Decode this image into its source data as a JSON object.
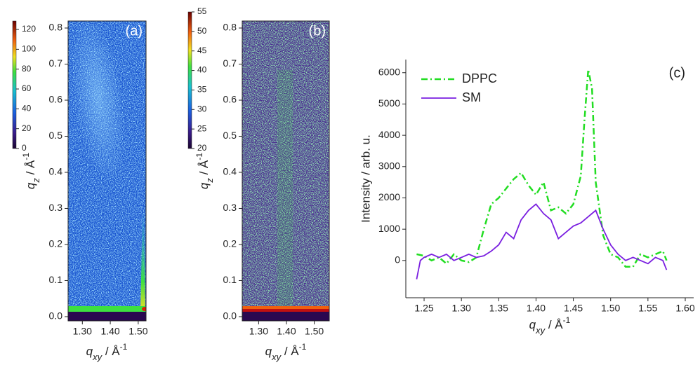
{
  "chart_data": [
    {
      "type": "heatmap",
      "panel_label": "(a)",
      "x_label": [
        "q",
        "xy",
        " / Å",
        "-1"
      ],
      "y_label": [
        "q",
        "z",
        " / Å",
        "-1"
      ],
      "xlim": [
        1.249,
        1.528
      ],
      "xticks": [
        {
          "value": 1.3,
          "label": "1.30"
        },
        {
          "value": 1.4,
          "label": "1.40"
        },
        {
          "value": 1.5,
          "label": "1.50"
        }
      ],
      "ylim": [
        -0.0117,
        0.8194
      ],
      "yticks": [
        {
          "value": 0,
          "label": "0.0"
        },
        {
          "value": 0.1,
          "label": "0.1"
        },
        {
          "value": 0.2,
          "label": "0.2"
        },
        {
          "value": 0.3,
          "label": "0.3"
        },
        {
          "value": 0.4,
          "label": "0.4"
        },
        {
          "value": 0.5,
          "label": "0.5"
        },
        {
          "value": 0.6,
          "label": "0.6"
        },
        {
          "value": 0.7,
          "label": "0.7"
        },
        {
          "value": 0.8,
          "label": "0.8"
        }
      ],
      "colorbar": {
        "lim": [
          0,
          128.5
        ],
        "ticks": [
          0,
          20,
          40,
          60,
          80,
          100,
          120
        ]
      }
    },
    {
      "type": "heatmap",
      "panel_label": "(b)",
      "x_label": [
        "q",
        "xy",
        " / Å",
        "-1"
      ],
      "y_label": [
        "q",
        "z",
        " / Å",
        "-1"
      ],
      "xlim": [
        1.241,
        1.554
      ],
      "xticks": [
        {
          "value": 1.3,
          "label": "1.30"
        },
        {
          "value": 1.4,
          "label": "1.40"
        },
        {
          "value": 1.5,
          "label": "1.50"
        }
      ],
      "ylim": [
        -0.0117,
        0.8194
      ],
      "yticks": [
        {
          "value": 0,
          "label": "0.0"
        },
        {
          "value": 0.1,
          "label": "0.1"
        },
        {
          "value": 0.2,
          "label": "0.2"
        },
        {
          "value": 0.3,
          "label": "0.3"
        },
        {
          "value": 0.4,
          "label": "0.4"
        },
        {
          "value": 0.5,
          "label": "0.5"
        },
        {
          "value": 0.6,
          "label": "0.6"
        },
        {
          "value": 0.7,
          "label": "0.7"
        },
        {
          "value": 0.8,
          "label": "0.8"
        }
      ],
      "colorbar": {
        "lim": [
          20,
          55
        ],
        "ticks": [
          20,
          25,
          30,
          35,
          40,
          45,
          50,
          55
        ]
      }
    },
    {
      "type": "line",
      "panel_label": "(c)",
      "x_label": [
        "q",
        "xy",
        " / Å",
        "-1"
      ],
      "y_label": "Intensity / arb. u.",
      "xlim": [
        1.2255,
        1.6113
      ],
      "xticks": [
        {
          "value": 1.25,
          "label": "1.25"
        },
        {
          "value": 1.3,
          "label": "1.30"
        },
        {
          "value": 1.35,
          "label": "1.35"
        },
        {
          "value": 1.4,
          "label": "1.40"
        },
        {
          "value": 1.45,
          "label": "1.45"
        },
        {
          "value": 1.5,
          "label": "1.50"
        },
        {
          "value": 1.55,
          "label": "1.55"
        },
        {
          "value": 1.6,
          "label": "1.60"
        }
      ],
      "ylim": [
        -1190,
        6420
      ],
      "yticks": [
        0,
        1000,
        2000,
        3000,
        4000,
        5000,
        6000
      ],
      "legend": "top-left",
      "series": [
        {
          "name": "DPPC",
          "color": "#22dd22",
          "dash": "dash-dot",
          "x": [
            1.24,
            1.25,
            1.26,
            1.27,
            1.28,
            1.29,
            1.3,
            1.31,
            1.32,
            1.33,
            1.34,
            1.35,
            1.36,
            1.37,
            1.38,
            1.39,
            1.4,
            1.41,
            1.42,
            1.43,
            1.44,
            1.45,
            1.46,
            1.465,
            1.47,
            1.475,
            1.48,
            1.49,
            1.5,
            1.51,
            1.52,
            1.53,
            1.54,
            1.55,
            1.56,
            1.57,
            1.575
          ],
          "values": [
            200,
            150,
            0,
            100,
            -100,
            200,
            0,
            -50,
            100,
            1000,
            1800,
            2000,
            2300,
            2600,
            2800,
            2400,
            2100,
            2500,
            1600,
            1700,
            1500,
            1800,
            2700,
            4500,
            6100,
            5500,
            2500,
            800,
            200,
            100,
            -200,
            -200,
            200,
            100,
            200,
            300,
            0
          ]
        },
        {
          "name": "SM",
          "color": "#7a1fe0",
          "dash": "solid",
          "x": [
            1.24,
            1.245,
            1.25,
            1.26,
            1.27,
            1.28,
            1.29,
            1.3,
            1.31,
            1.32,
            1.33,
            1.34,
            1.35,
            1.36,
            1.37,
            1.38,
            1.39,
            1.4,
            1.41,
            1.42,
            1.43,
            1.44,
            1.45,
            1.46,
            1.47,
            1.48,
            1.49,
            1.5,
            1.51,
            1.52,
            1.53,
            1.54,
            1.55,
            1.56,
            1.57,
            1.575
          ],
          "values": [
            -600,
            0,
            100,
            200,
            100,
            200,
            0,
            100,
            200,
            100,
            150,
            300,
            500,
            900,
            700,
            1300,
            1600,
            1800,
            1500,
            1300,
            700,
            900,
            1100,
            1200,
            1400,
            1600,
            1000,
            500,
            200,
            0,
            100,
            0,
            -100,
            100,
            0,
            -300
          ]
        }
      ]
    }
  ]
}
